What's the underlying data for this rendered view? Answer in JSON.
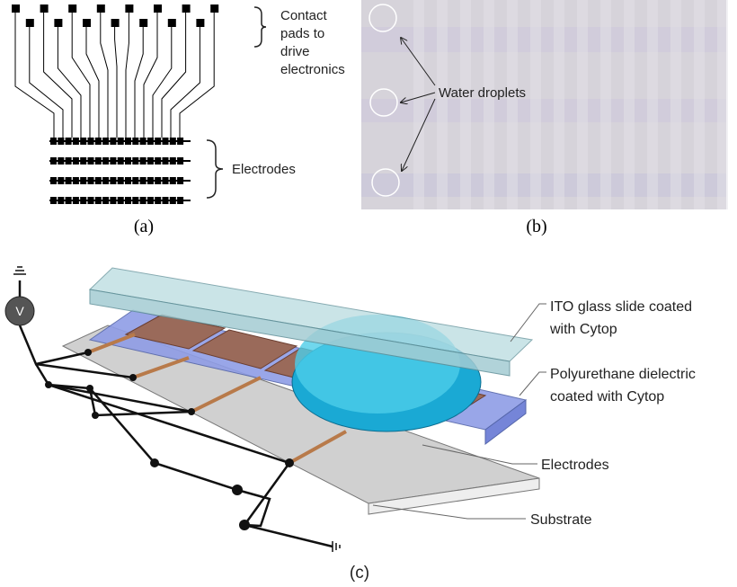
{
  "panel_a": {
    "contact_label": [
      "Contact",
      "pads to",
      "drive",
      "electronics"
    ],
    "electrodes_label": "Electrodes",
    "caption": "(a)"
  },
  "panel_b": {
    "droplets_label": "Water droplets",
    "caption": "(b)"
  },
  "panel_c": {
    "meter_label": "V",
    "ito_label": [
      "ITO glass slide coated",
      "with Cytop"
    ],
    "dielectric_label": [
      "Polyurethane dielectric",
      "coated with Cytop"
    ],
    "electrodes_label": "Electrodes",
    "substrate_label": "Substrate",
    "caption": "(c)"
  }
}
